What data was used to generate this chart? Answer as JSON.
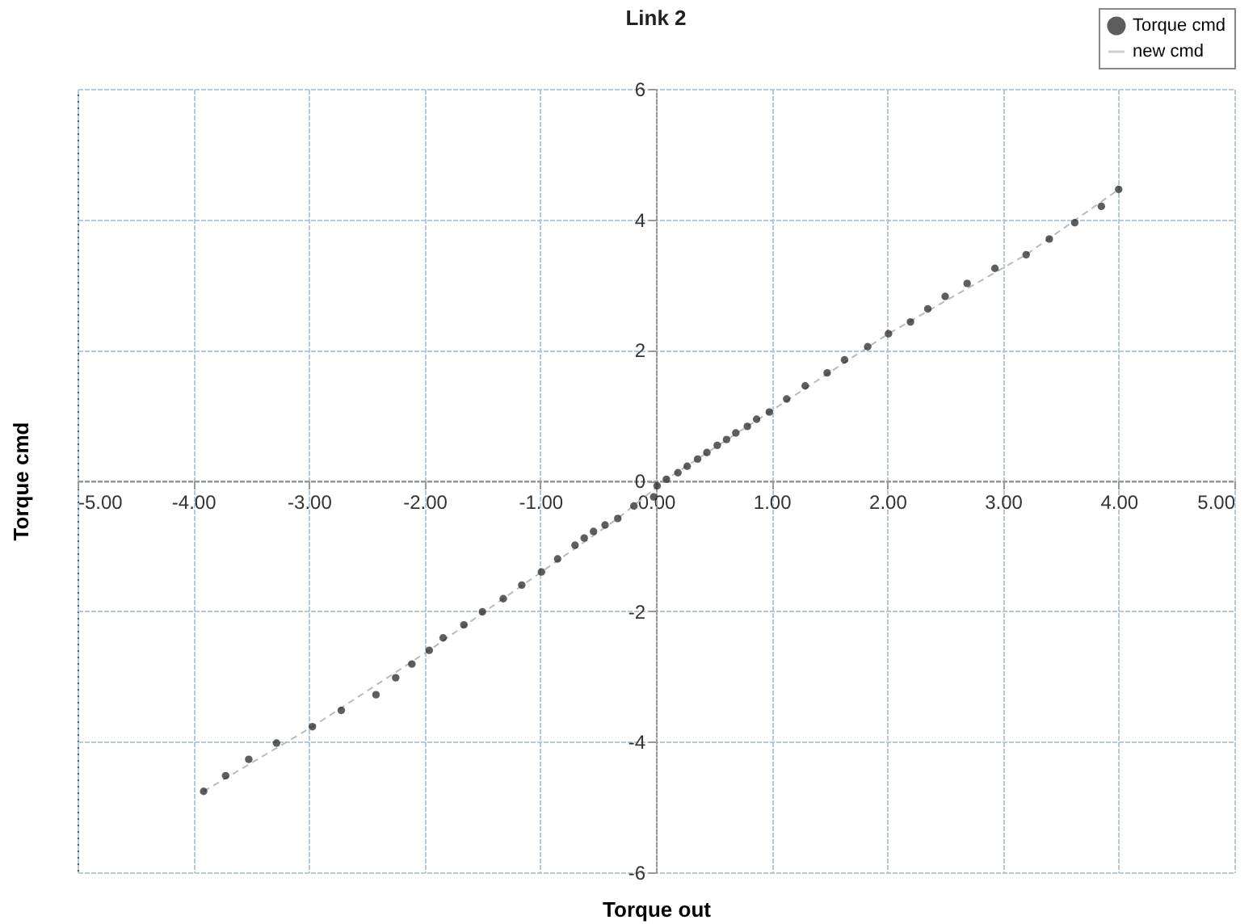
{
  "chart_data": {
    "type": "scatter",
    "title": "Link 2",
    "xlabel": "Torque out",
    "ylabel": "Torque cmd",
    "xlim": [
      -5,
      5
    ],
    "xticks": [
      {
        "value": -5,
        "label": "-5.00"
      },
      {
        "value": -4,
        "label": "-4.00"
      },
      {
        "value": -3,
        "label": "-3.00"
      },
      {
        "value": -2,
        "label": "-2.00"
      },
      {
        "value": -1,
        "label": "-1.00"
      },
      {
        "value": 0,
        "label": "0.00"
      },
      {
        "value": 1,
        "label": "1.00"
      },
      {
        "value": 2,
        "label": "2.00"
      },
      {
        "value": 3,
        "label": "3.00"
      },
      {
        "value": 4,
        "label": "4.00"
      },
      {
        "value": 5,
        "label": "5.00"
      }
    ],
    "ylim": [
      -6,
      6
    ],
    "yticks": [
      -6,
      -4,
      -2,
      0,
      2,
      4,
      6
    ],
    "grid": true,
    "legend": "top right",
    "series": [
      {
        "name": "Torque cmd",
        "type": "scatter",
        "marker": "circle",
        "color": "#1a1a1a",
        "x": [
          -3.91,
          -3.72,
          -3.52,
          -3.28,
          -2.97,
          -2.72,
          -2.42,
          -2.25,
          -2.11,
          -1.96,
          -1.84,
          -1.66,
          -1.5,
          -1.32,
          -1.16,
          -0.99,
          -0.85,
          -0.7,
          -0.62,
          -0.54,
          -0.44,
          -0.33,
          -0.19,
          -0.02,
          0.01,
          0.09,
          0.19,
          0.27,
          0.36,
          0.44,
          0.53,
          0.61,
          0.69,
          0.79,
          0.87,
          0.98,
          1.13,
          1.29,
          1.48,
          1.63,
          1.83,
          2.01,
          2.2,
          2.35,
          2.5,
          2.69,
          2.93,
          3.2,
          3.4,
          3.62,
          3.85,
          4.0
        ],
        "values": [
          -4.76,
          -4.52,
          -4.27,
          -4.02,
          -3.77,
          -3.52,
          -3.28,
          -3.02,
          -2.81,
          -2.6,
          -2.41,
          -2.21,
          -2.01,
          -1.81,
          -1.6,
          -1.4,
          -1.2,
          -0.99,
          -0.88,
          -0.78,
          -0.68,
          -0.58,
          -0.39,
          -0.25,
          -0.08,
          0.02,
          0.12,
          0.22,
          0.33,
          0.43,
          0.54,
          0.63,
          0.73,
          0.83,
          0.94,
          1.05,
          1.25,
          1.45,
          1.65,
          1.85,
          2.05,
          2.25,
          2.43,
          2.63,
          2.82,
          3.02,
          3.25,
          3.46,
          3.7,
          3.95,
          4.2,
          4.46
        ]
      },
      {
        "name": "new cmd",
        "type": "line",
        "marker": "none",
        "line_style": "dashed",
        "color": "#b4bcc4",
        "x": [
          -3.91,
          -2.97,
          -1.96,
          -0.99,
          -0.33,
          0.0,
          0.09,
          0.98,
          2.01,
          3.2,
          4.0
        ],
        "values": [
          -4.76,
          -3.77,
          -2.6,
          -1.4,
          -0.58,
          -0.11,
          0.02,
          1.05,
          2.25,
          3.46,
          4.46
        ]
      }
    ]
  }
}
